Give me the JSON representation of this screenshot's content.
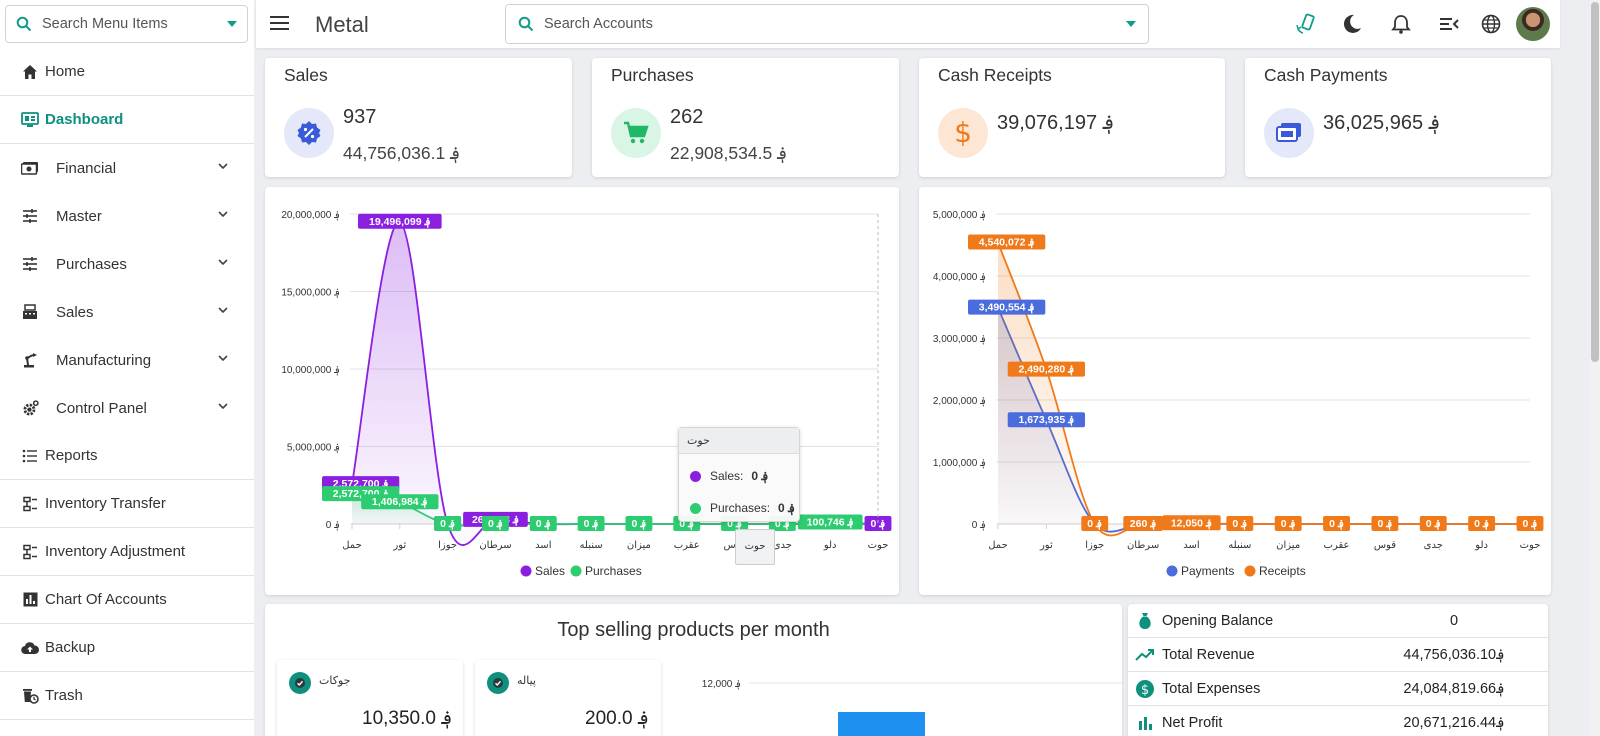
{
  "sidebar": {
    "search_placeholder": "Search Menu Items",
    "items": [
      {
        "label": "Home"
      },
      {
        "label": "Dashboard"
      },
      {
        "label": "Financial"
      },
      {
        "label": "Master"
      },
      {
        "label": "Purchases"
      },
      {
        "label": "Sales"
      },
      {
        "label": "Manufacturing"
      },
      {
        "label": "Control Panel"
      },
      {
        "label": "Reports"
      },
      {
        "label": "Inventory Transfer"
      },
      {
        "label": "Inventory Adjustment"
      },
      {
        "label": "Chart Of Accounts"
      },
      {
        "label": "Backup"
      },
      {
        "label": "Trash"
      }
    ]
  },
  "header": {
    "title": "Metal",
    "search_placeholder": "Search Accounts"
  },
  "stats": {
    "sales": {
      "title": "Sales",
      "count": "937",
      "amount": "44,756,036.1 ؋"
    },
    "purchases": {
      "title": "Purchases",
      "count": "262",
      "amount": "22,908,534.5 ؋"
    },
    "cash_receipts": {
      "title": "Cash Receipts",
      "amount": "39,076,197 ؋"
    },
    "cash_payments": {
      "title": "Cash Payments",
      "amount": "36,025,965 ؋"
    }
  },
  "colors": {
    "accent": "#0f8f7e",
    "sales": "#8b1fe0",
    "purchases": "#2dcc70",
    "payments": "#4a6cdc",
    "receipts": "#f07a1a"
  },
  "chart_data": [
    {
      "type": "area",
      "title": "",
      "categories": [
        "حمل",
        "ثور",
        "جوزا",
        "سرطان",
        "اسد",
        "سنبله",
        "میزان",
        "عقرب",
        "قوس",
        "جدی",
        "دلو",
        "حوت"
      ],
      "series": [
        {
          "name": "Sales",
          "values": [
            2572700,
            19496099,
            0,
            263478,
            0,
            0,
            0,
            0,
            0,
            0,
            0,
            0
          ]
        },
        {
          "name": "Purchases",
          "values": [
            2572700,
            1406984,
            0,
            0,
            0,
            0,
            0,
            0,
            0,
            0,
            100746,
            0
          ]
        }
      ],
      "data_labels": {
        "Sales": [
          "2,572,700 ؋",
          "19,496,099 ؋",
          "0 ؋",
          "263,478 ؋",
          "",
          "",
          "",
          "",
          "",
          "",
          "",
          "0 ؋"
        ],
        "Purchases": [
          "2,572,700 ؋",
          "1,406,984 ؋",
          "0 ؋",
          "0 ؋",
          "0 ؋",
          "0 ؋",
          "0 ؋",
          "0 ؋",
          "0 ؋",
          "0 ؋",
          "100,746 ؋",
          ""
        ]
      },
      "yticks": [
        "0 ؋",
        "5,000,000 ؋",
        "10,000,000 ؋",
        "15,000,000 ؋",
        "20,000,000 ؋"
      ],
      "ylim": [
        0,
        20000000
      ],
      "legend": [
        "Sales",
        "Purchases"
      ],
      "legend_position": "bottom",
      "tooltip": {
        "title": "حوت",
        "rows": [
          {
            "label": "Sales:",
            "value": "0 ؋"
          },
          {
            "label": "Purchases:",
            "value": "0 ؋"
          }
        ]
      },
      "hover_label": "حوت"
    },
    {
      "type": "area",
      "title": "",
      "categories": [
        "حمل",
        "ثور",
        "جوزا",
        "سرطان",
        "اسد",
        "سنبله",
        "میزان",
        "عقرب",
        "قوس",
        "جدی",
        "دلو",
        "حوت"
      ],
      "series": [
        {
          "name": "Payments",
          "values": [
            3490554,
            1673935,
            0,
            0,
            0,
            0,
            0,
            0,
            0,
            0,
            0,
            0
          ]
        },
        {
          "name": "Receipts",
          "values": [
            4540072,
            2490280,
            0,
            260,
            12050,
            0,
            0,
            0,
            0,
            0,
            0,
            0
          ]
        }
      ],
      "data_labels": {
        "Payments": [
          "3,490,554 ؋",
          "1,673,935 ؋",
          "",
          "",
          "",
          "",
          "",
          "",
          "",
          "",
          "",
          ""
        ],
        "Receipts": [
          "4,540,072 ؋",
          "2,490,280 ؋",
          "0 ؋",
          "260 ؋",
          "12,050 ؋",
          "0 ؋",
          "0 ؋",
          "0 ؋",
          "0 ؋",
          "0 ؋",
          "0 ؋",
          "0 ؋"
        ]
      },
      "yticks": [
        "0 ؋",
        "1,000,000 ؋",
        "2,000,000 ؋",
        "3,000,000 ؋",
        "4,000,000 ؋",
        "5,000,000 ؋"
      ],
      "ylim": [
        0,
        5000000
      ],
      "legend": [
        "Payments",
        "Receipts"
      ],
      "legend_position": "bottom"
    },
    {
      "type": "bar",
      "title": "Top selling products per month",
      "categories": [],
      "values": [],
      "yticks": [
        "12,000 ؋"
      ],
      "ylim": [
        0,
        12000
      ]
    }
  ],
  "top_selling": {
    "title": "Top selling products per month",
    "products": [
      {
        "name": "جوکات",
        "value": "10,350.0 ؋"
      },
      {
        "name": "پیاله",
        "value": "200.0 ؋"
      }
    ]
  },
  "summary": [
    {
      "label": "Opening Balance",
      "value": "0"
    },
    {
      "label": "Total Revenue",
      "value": "44,756,036.10؋"
    },
    {
      "label": "Total Expenses",
      "value": "24,084,819.66؋"
    },
    {
      "label": "Net Profit",
      "value": "20,671,216.44؋"
    }
  ]
}
